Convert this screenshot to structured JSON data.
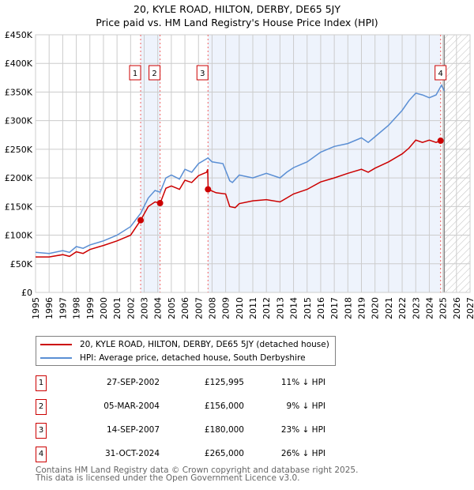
{
  "title": [
    "20, KYLE ROAD, HILTON, DERBY, DE65 5JY",
    "Price paid vs. HM Land Registry's House Price Index (HPI)"
  ],
  "colors": {
    "property": "#cc0000",
    "hpi": "#5b8fd4",
    "shade": "#eef3fc",
    "grid": "#cccccc"
  },
  "chart_data": {
    "type": "line",
    "title": "20, KYLE ROAD, HILTON, DERBY, DE65 5JY — Price paid vs. HM Land Registry's House Price Index (HPI)",
    "xlim": [
      1995,
      2027
    ],
    "ylim": [
      0,
      450000
    ],
    "x_ticks": [
      "1995",
      "1996",
      "1997",
      "1998",
      "1999",
      "2000",
      "2001",
      "2002",
      "2003",
      "2004",
      "2005",
      "2006",
      "2007",
      "2008",
      "2009",
      "2010",
      "2011",
      "2012",
      "2013",
      "2014",
      "2015",
      "2016",
      "2017",
      "2018",
      "2019",
      "2020",
      "2021",
      "2022",
      "2023",
      "2024",
      "2025",
      "2026",
      "2027"
    ],
    "y_ticks": [
      {
        "v": 0,
        "label": "£0"
      },
      {
        "v": 50000,
        "label": "£50K"
      },
      {
        "v": 100000,
        "label": "£100K"
      },
      {
        "v": 150000,
        "label": "£150K"
      },
      {
        "v": 200000,
        "label": "£200K"
      },
      {
        "v": 250000,
        "label": "£250K"
      },
      {
        "v": 300000,
        "label": "£300K"
      },
      {
        "v": 350000,
        "label": "£350K"
      },
      {
        "v": 400000,
        "label": "£400K"
      },
      {
        "v": 450000,
        "label": "£450K"
      }
    ],
    "grid": true,
    "forecast_start": 2025.1,
    "series": [
      {
        "name": "20, KYLE ROAD, HILTON, DERBY, DE65 5JY (detached house)",
        "color": "#cc0000",
        "x": [
          1995,
          1996,
          1997,
          1997.5,
          1998,
          1998.5,
          1999,
          2000,
          2001,
          2002,
          2002.74,
          2003.3,
          2003.8,
          2004.18,
          2004.6,
          2005,
          2005.6,
          2006,
          2006.5,
          2007,
          2007.6,
          2007.68,
          2007.71,
          2008.3,
          2009,
          2009.3,
          2009.7,
          2010,
          2011,
          2012,
          2013,
          2013.5,
          2014,
          2015,
          2016,
          2017,
          2018,
          2019,
          2019.5,
          2020,
          2021,
          2022,
          2022.5,
          2023,
          2023.5,
          2024,
          2024.5,
          2024.83,
          2025
        ],
        "y": [
          62000,
          62000,
          66000,
          63000,
          71000,
          68000,
          75000,
          82000,
          90000,
          100000,
          125995,
          150000,
          158000,
          156000,
          182000,
          186000,
          180000,
          196000,
          192000,
          204000,
          210000,
          215000,
          180000,
          174000,
          172000,
          150000,
          148000,
          155000,
          160000,
          162000,
          158000,
          165000,
          172000,
          180000,
          193000,
          200000,
          208000,
          215000,
          210000,
          217000,
          228000,
          242000,
          252000,
          266000,
          262000,
          266000,
          262000,
          265000,
          266000
        ]
      },
      {
        "name": "HPI: Average price, detached house, South Derbyshire",
        "color": "#5b8fd4",
        "x": [
          1995,
          1996,
          1997,
          1997.5,
          1998,
          1998.5,
          1999,
          2000,
          2001,
          2002,
          2002.74,
          2003.3,
          2003.8,
          2004.18,
          2004.6,
          2005,
          2005.6,
          2006,
          2006.5,
          2007,
          2007.7,
          2008,
          2008.8,
          2009.3,
          2009.5,
          2010,
          2011,
          2012,
          2013,
          2013.5,
          2014,
          2015,
          2016,
          2017,
          2018,
          2019,
          2019.5,
          2020,
          2021,
          2022,
          2022.5,
          2023,
          2023.5,
          2024,
          2024.5,
          2024.9,
          2025.1
        ],
        "y": [
          70000,
          68000,
          73000,
          70000,
          80000,
          77000,
          83000,
          90000,
          100000,
          115000,
          138000,
          165000,
          178000,
          175000,
          200000,
          205000,
          198000,
          215000,
          210000,
          225000,
          235000,
          228000,
          225000,
          195000,
          192000,
          205000,
          200000,
          208000,
          200000,
          210000,
          218000,
          228000,
          245000,
          255000,
          260000,
          270000,
          262000,
          272000,
          292000,
          318000,
          335000,
          348000,
          345000,
          340000,
          345000,
          362000,
          352000
        ]
      }
    ],
    "sales": [
      {
        "n": "1",
        "x": 2002.74,
        "date": "27-SEP-2002",
        "price": 125995,
        "price_label": "£125,995",
        "hpi": "11% ↓ HPI"
      },
      {
        "n": "2",
        "x": 2004.17,
        "date": "05-MAR-2004",
        "price": 156000,
        "price_label": "£156,000",
        "hpi": "9% ↓ HPI"
      },
      {
        "n": "3",
        "x": 2007.7,
        "date": "14-SEP-2007",
        "price": 180000,
        "price_label": "£180,000",
        "hpi": "23% ↓ HPI"
      },
      {
        "n": "4",
        "x": 2024.83,
        "date": "31-OCT-2024",
        "price": 265000,
        "price_label": "£265,000",
        "hpi": "26% ↓ HPI"
      }
    ],
    "legend_position": "below"
  },
  "legend": [
    "20, KYLE ROAD, HILTON, DERBY, DE65 5JY (detached house)",
    "HPI: Average price, detached house, South Derbyshire"
  ],
  "footer": [
    "Contains HM Land Registry data © Crown copyright and database right 2025.",
    "This data is licensed under the Open Government Licence v3.0."
  ]
}
